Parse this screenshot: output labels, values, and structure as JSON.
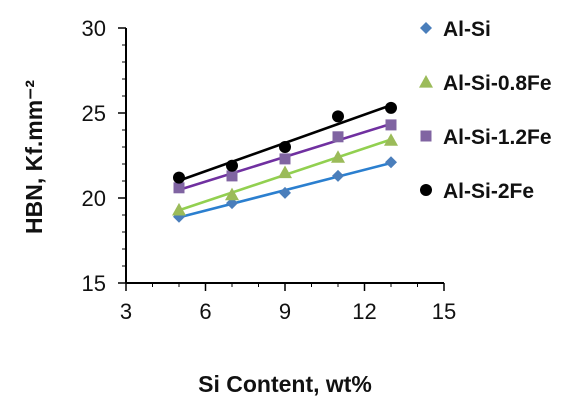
{
  "chart_data": {
    "type": "scatter",
    "title": "",
    "xlabel": "Si Content, wt%",
    "ylabel": "HBN, Kf.mm⁻²",
    "xlim": [
      3,
      15
    ],
    "ylim": [
      15,
      30
    ],
    "xticks": [
      "3",
      "6",
      "9",
      "12",
      "15"
    ],
    "yticks": [
      "15",
      "20",
      "25",
      "30"
    ],
    "grid": false,
    "legend_position": "right",
    "trendlines": "linear",
    "x": [
      5,
      7,
      9,
      11,
      13
    ],
    "series": [
      {
        "name": "Al-Si",
        "color": "#4a7ebb",
        "line_color": "#2b7fcf",
        "marker": "diamond",
        "values": [
          18.9,
          19.7,
          20.3,
          21.3,
          22.1
        ]
      },
      {
        "name": "Al-Si-0.8Fe",
        "color": "#9bbb59",
        "line_color": "#92d050",
        "marker": "triangle",
        "values": [
          19.3,
          20.2,
          21.5,
          22.4,
          23.4
        ]
      },
      {
        "name": "Al-Si-1.2Fe",
        "color": "#8064a2",
        "line_color": "#7030a0",
        "marker": "square",
        "values": [
          20.6,
          21.3,
          22.3,
          23.6,
          24.3
        ]
      },
      {
        "name": "Al-Si-2Fe",
        "color": "#000000",
        "line_color": "#000000",
        "marker": "circle",
        "values": [
          21.2,
          21.9,
          23.0,
          24.8,
          25.3
        ]
      }
    ]
  }
}
